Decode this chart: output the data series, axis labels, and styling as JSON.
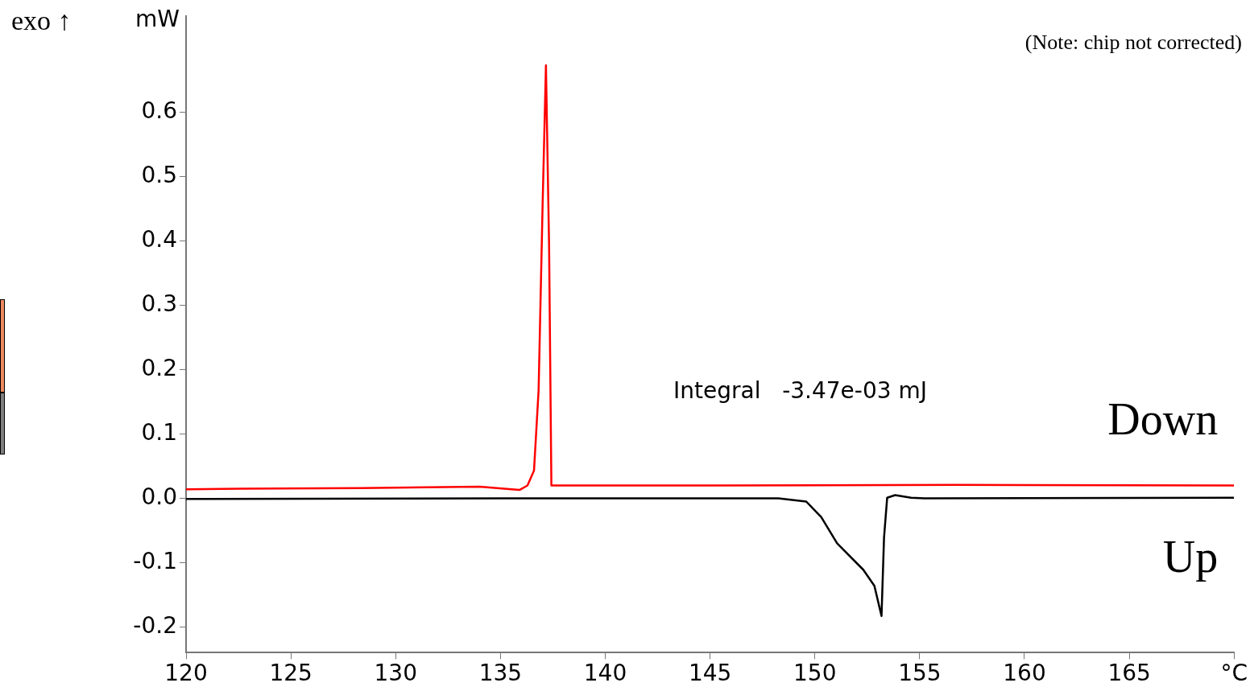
{
  "chart_data": {
    "type": "line",
    "ylabel": "mW",
    "annotations": [
      "Integral   -3.47e-03 mJ",
      "(Note: chip not corrected)",
      "exo ↑"
    ],
    "xlim": [
      120,
      170
    ],
    "xticks": [
      120,
      125,
      130,
      135,
      140,
      145,
      150,
      155,
      160,
      165,
      {
        "value": 170,
        "label": "°C"
      }
    ],
    "ylim": [
      -0.24,
      0.75
    ],
    "yticks": [
      -0.2,
      -0.1,
      {
        "value": 0,
        "label": "0.0"
      },
      0.1,
      0.2,
      0.3,
      0.4,
      0.5,
      0.6
    ],
    "grid": false,
    "legend": false,
    "marker": "none",
    "line_style": "solid",
    "series": [
      {
        "name": "Down",
        "color": "#ff0000",
        "x": [
          120,
          122.62,
          128.32,
          134.01,
          135.53,
          135.91,
          136.29,
          136.6,
          136.82,
          137.01,
          137.17,
          137.32,
          137.43,
          137.62,
          145.41,
          156.8,
          170
        ],
        "values": [
          0.014,
          0.015,
          0.016,
          0.018,
          0.014,
          0.013,
          0.02,
          0.043,
          0.168,
          0.455,
          0.673,
          0.393,
          0.02,
          0.02,
          0.02,
          0.021,
          0.02
        ]
      },
      {
        "name": "Up",
        "color": "#000000",
        "x": [
          120,
          135,
          148.26,
          149.59,
          150.3,
          151.06,
          152.31,
          152.84,
          153.18,
          153.3,
          153.45,
          153.83,
          154.59,
          155.23,
          170
        ],
        "values": [
          -0.001,
          0,
          0,
          -0.005,
          -0.029,
          -0.07,
          -0.111,
          -0.136,
          -0.183,
          -0.061,
          0.001,
          0.005,
          0.001,
          0,
          0.001
        ]
      }
    ]
  }
}
